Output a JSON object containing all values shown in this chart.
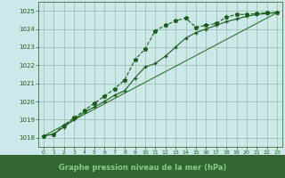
{
  "background_color": "#cce8e8",
  "plot_bg_color": "#cce8e8",
  "grid_color": "#99bbaa",
  "line_color_dark": "#1a5c1a",
  "line_color_med": "#2d7a2d",
  "text_color": "#1a5c1a",
  "bottom_bar_color": "#336633",
  "bottom_text_color": "#88cc88",
  "xlabel": "Graphe pression niveau de la mer (hPa)",
  "ylim": [
    1017.5,
    1025.5
  ],
  "xlim": [
    -0.5,
    23.5
  ],
  "yticks": [
    1018,
    1019,
    1020,
    1021,
    1022,
    1023,
    1024,
    1025
  ],
  "xticks": [
    0,
    1,
    2,
    3,
    4,
    5,
    6,
    7,
    8,
    9,
    10,
    11,
    12,
    13,
    14,
    15,
    16,
    17,
    18,
    19,
    20,
    21,
    22,
    23
  ],
  "series1_x": [
    0,
    1,
    2,
    3,
    4,
    5,
    6,
    7,
    8,
    9,
    10,
    11,
    12,
    13,
    14,
    15,
    16,
    17,
    18,
    19,
    20,
    21,
    22,
    23
  ],
  "series1_y": [
    1018.1,
    1018.2,
    1018.7,
    1019.1,
    1019.5,
    1019.9,
    1020.3,
    1020.7,
    1021.2,
    1022.3,
    1022.9,
    1023.9,
    1024.2,
    1024.45,
    1024.6,
    1024.1,
    1024.2,
    1024.3,
    1024.65,
    1024.8,
    1024.8,
    1024.85,
    1024.9,
    1024.9
  ],
  "series2_x": [
    0,
    1,
    2,
    3,
    4,
    5,
    6,
    7,
    8,
    9,
    10,
    11,
    12,
    13,
    14,
    15,
    16,
    17,
    18,
    19,
    20,
    21,
    22,
    23
  ],
  "series2_y": [
    1018.1,
    1018.2,
    1018.6,
    1019.0,
    1019.4,
    1019.7,
    1020.0,
    1020.35,
    1020.6,
    1021.3,
    1021.9,
    1022.1,
    1022.5,
    1023.0,
    1023.5,
    1023.8,
    1024.0,
    1024.2,
    1024.4,
    1024.55,
    1024.7,
    1024.8,
    1024.85,
    1024.9
  ],
  "series3_x": [
    0,
    23
  ],
  "series3_y": [
    1018.1,
    1024.9
  ]
}
